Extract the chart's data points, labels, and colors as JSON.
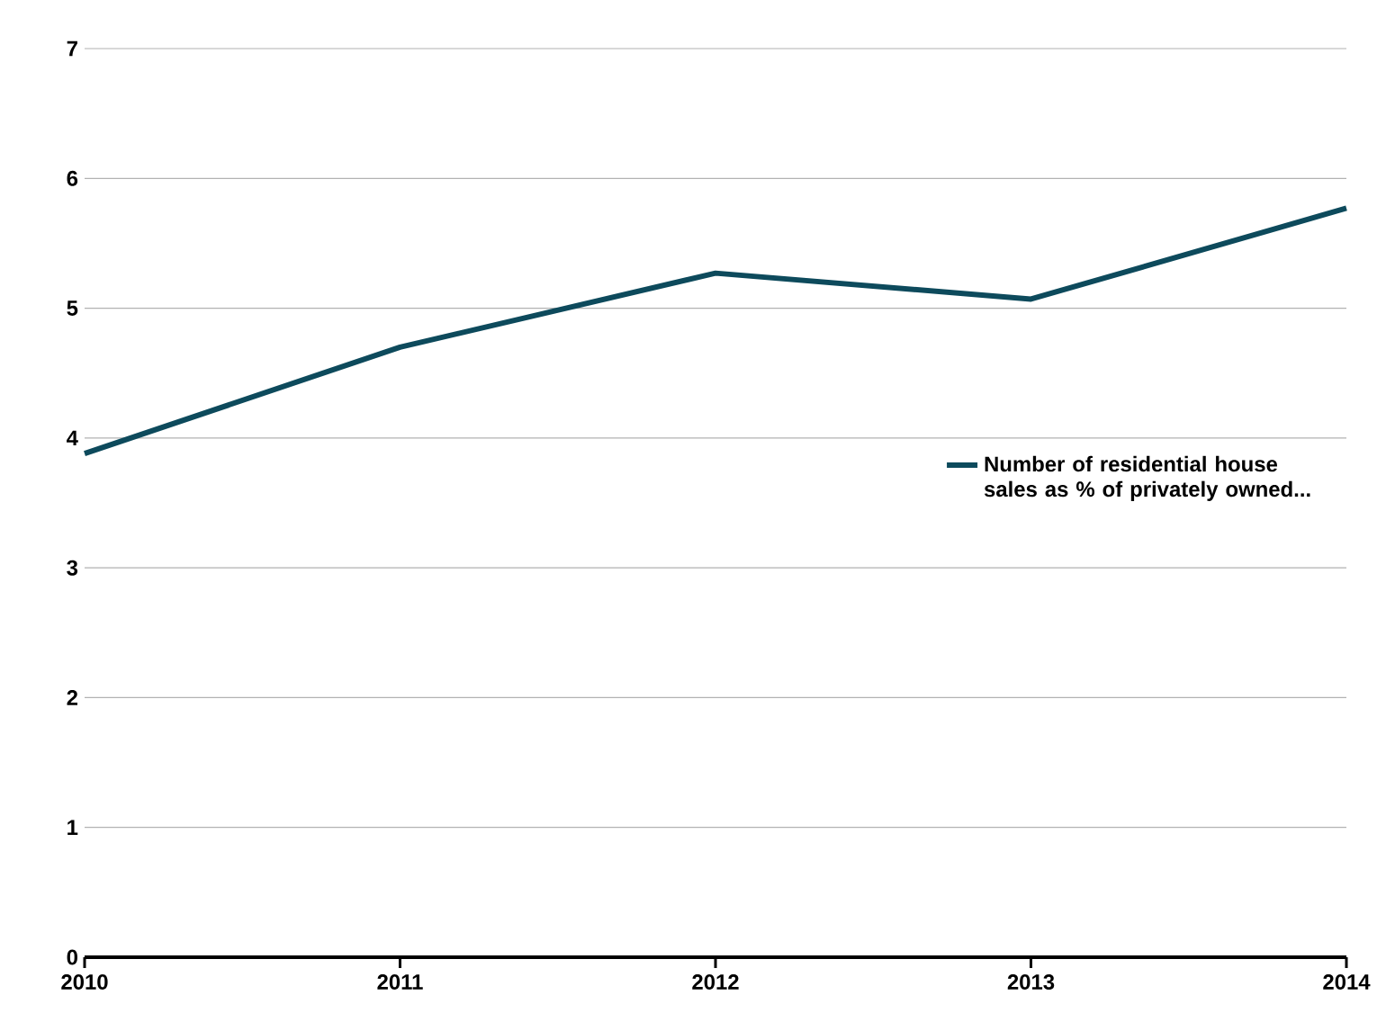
{
  "chart_data": {
    "type": "line",
    "x": [
      2010,
      2011,
      2012,
      2013,
      2014
    ],
    "series": [
      {
        "name": "Number of residential house sales as % of privately owned...",
        "color": "#0d4a5c",
        "values": [
          3.88,
          4.7,
          5.27,
          5.07,
          5.77
        ]
      }
    ],
    "xlim": [
      2010,
      2014
    ],
    "xticks": [
      2010,
      2011,
      2012,
      2013,
      2014
    ],
    "ylim": [
      0,
      7
    ],
    "yticks": [
      0,
      1,
      2,
      3,
      4,
      5,
      6,
      7
    ],
    "grid": "y",
    "legend": "right",
    "marker": "none",
    "line_style": "solid"
  }
}
